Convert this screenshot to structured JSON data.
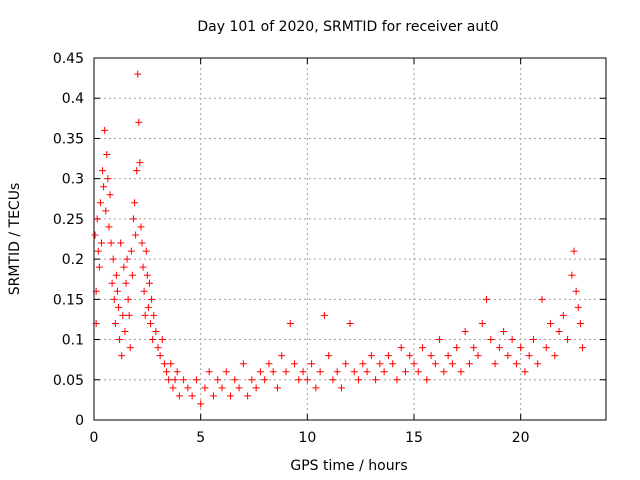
{
  "chart_data": {
    "type": "scatter",
    "title": "Day 101 of 2020, SRMTID for receiver aut0",
    "xlabel": "GPS time / hours",
    "ylabel": "SRMTID / TECUs",
    "xlim": [
      0,
      24
    ],
    "ylim": [
      0,
      0.45
    ],
    "xticks": [
      0,
      5,
      10,
      15,
      20
    ],
    "xtick_labels": [
      "0",
      "5",
      "10",
      "15",
      "20"
    ],
    "yticks": [
      0,
      0.05,
      0.1,
      0.15,
      0.2,
      0.25,
      0.3,
      0.35,
      0.4,
      0.45
    ],
    "ytick_labels": [
      "0",
      "0.05",
      "0.1",
      "0.15",
      "0.2",
      "0.25",
      "0.3",
      "0.35",
      "0.4",
      "0.45"
    ],
    "grid": true,
    "marker": "+",
    "series": [
      {
        "name": "aut0",
        "color": "#ff0000",
        "points": [
          [
            0.05,
            0.23
          ],
          [
            0.1,
            0.12
          ],
          [
            0.1,
            0.16
          ],
          [
            0.15,
            0.25
          ],
          [
            0.2,
            0.21
          ],
          [
            0.25,
            0.19
          ],
          [
            0.3,
            0.27
          ],
          [
            0.35,
            0.22
          ],
          [
            0.4,
            0.31
          ],
          [
            0.45,
            0.29
          ],
          [
            0.5,
            0.36
          ],
          [
            0.55,
            0.26
          ],
          [
            0.6,
            0.33
          ],
          [
            0.65,
            0.3
          ],
          [
            0.7,
            0.24
          ],
          [
            0.75,
            0.28
          ],
          [
            0.8,
            0.22
          ],
          [
            0.85,
            0.17
          ],
          [
            0.9,
            0.2
          ],
          [
            0.95,
            0.15
          ],
          [
            1.0,
            0.12
          ],
          [
            1.05,
            0.18
          ],
          [
            1.1,
            0.16
          ],
          [
            1.15,
            0.14
          ],
          [
            1.2,
            0.1
          ],
          [
            1.25,
            0.22
          ],
          [
            1.3,
            0.08
          ],
          [
            1.35,
            0.13
          ],
          [
            1.4,
            0.19
          ],
          [
            1.45,
            0.11
          ],
          [
            1.5,
            0.17
          ],
          [
            1.55,
            0.2
          ],
          [
            1.6,
            0.15
          ],
          [
            1.65,
            0.13
          ],
          [
            1.7,
            0.09
          ],
          [
            1.75,
            0.21
          ],
          [
            1.8,
            0.18
          ],
          [
            1.85,
            0.25
          ],
          [
            1.9,
            0.27
          ],
          [
            1.95,
            0.23
          ],
          [
            2.0,
            0.31
          ],
          [
            2.05,
            0.43
          ],
          [
            2.1,
            0.37
          ],
          [
            2.15,
            0.32
          ],
          [
            2.2,
            0.24
          ],
          [
            2.25,
            0.22
          ],
          [
            2.3,
            0.19
          ],
          [
            2.35,
            0.16
          ],
          [
            2.4,
            0.13
          ],
          [
            2.45,
            0.21
          ],
          [
            2.5,
            0.18
          ],
          [
            2.55,
            0.14
          ],
          [
            2.6,
            0.17
          ],
          [
            2.65,
            0.12
          ],
          [
            2.7,
            0.15
          ],
          [
            2.75,
            0.1
          ],
          [
            2.8,
            0.13
          ],
          [
            2.9,
            0.11
          ],
          [
            3.0,
            0.09
          ],
          [
            3.1,
            0.08
          ],
          [
            3.2,
            0.1
          ],
          [
            3.3,
            0.07
          ],
          [
            3.4,
            0.06
          ],
          [
            3.5,
            0.05
          ],
          [
            3.6,
            0.07
          ],
          [
            3.7,
            0.04
          ],
          [
            3.8,
            0.05
          ],
          [
            3.9,
            0.06
          ],
          [
            4.0,
            0.03
          ],
          [
            4.2,
            0.05
          ],
          [
            4.4,
            0.04
          ],
          [
            4.6,
            0.03
          ],
          [
            4.8,
            0.05
          ],
          [
            5.0,
            0.02
          ],
          [
            5.2,
            0.04
          ],
          [
            5.4,
            0.06
          ],
          [
            5.6,
            0.03
          ],
          [
            5.8,
            0.05
          ],
          [
            6.0,
            0.04
          ],
          [
            6.2,
            0.06
          ],
          [
            6.4,
            0.03
          ],
          [
            6.6,
            0.05
          ],
          [
            6.8,
            0.04
          ],
          [
            7.0,
            0.07
          ],
          [
            7.2,
            0.03
          ],
          [
            7.4,
            0.05
          ],
          [
            7.6,
            0.04
          ],
          [
            7.8,
            0.06
          ],
          [
            8.0,
            0.05
          ],
          [
            8.2,
            0.07
          ],
          [
            8.4,
            0.06
          ],
          [
            8.6,
            0.04
          ],
          [
            8.8,
            0.08
          ],
          [
            9.0,
            0.06
          ],
          [
            9.2,
            0.12
          ],
          [
            9.4,
            0.07
          ],
          [
            9.6,
            0.05
          ],
          [
            9.8,
            0.06
          ],
          [
            10.0,
            0.05
          ],
          [
            10.2,
            0.07
          ],
          [
            10.4,
            0.04
          ],
          [
            10.6,
            0.06
          ],
          [
            10.8,
            0.13
          ],
          [
            11.0,
            0.08
          ],
          [
            11.2,
            0.05
          ],
          [
            11.4,
            0.06
          ],
          [
            11.6,
            0.04
          ],
          [
            11.8,
            0.07
          ],
          [
            12.0,
            0.12
          ],
          [
            12.2,
            0.06
          ],
          [
            12.4,
            0.05
          ],
          [
            12.6,
            0.07
          ],
          [
            12.8,
            0.06
          ],
          [
            13.0,
            0.08
          ],
          [
            13.2,
            0.05
          ],
          [
            13.4,
            0.07
          ],
          [
            13.6,
            0.06
          ],
          [
            13.8,
            0.08
          ],
          [
            14.0,
            0.07
          ],
          [
            14.2,
            0.05
          ],
          [
            14.4,
            0.09
          ],
          [
            14.6,
            0.06
          ],
          [
            14.8,
            0.08
          ],
          [
            15.0,
            0.07
          ],
          [
            15.2,
            0.06
          ],
          [
            15.4,
            0.09
          ],
          [
            15.6,
            0.05
          ],
          [
            15.8,
            0.08
          ],
          [
            16.0,
            0.07
          ],
          [
            16.2,
            0.1
          ],
          [
            16.4,
            0.06
          ],
          [
            16.6,
            0.08
          ],
          [
            16.8,
            0.07
          ],
          [
            17.0,
            0.09
          ],
          [
            17.2,
            0.06
          ],
          [
            17.4,
            0.11
          ],
          [
            17.6,
            0.07
          ],
          [
            17.8,
            0.09
          ],
          [
            18.0,
            0.08
          ],
          [
            18.2,
            0.12
          ],
          [
            18.4,
            0.15
          ],
          [
            18.6,
            0.1
          ],
          [
            18.8,
            0.07
          ],
          [
            19.0,
            0.09
          ],
          [
            19.2,
            0.11
          ],
          [
            19.4,
            0.08
          ],
          [
            19.6,
            0.1
          ],
          [
            19.8,
            0.07
          ],
          [
            20.0,
            0.09
          ],
          [
            20.2,
            0.06
          ],
          [
            20.4,
            0.08
          ],
          [
            20.6,
            0.1
          ],
          [
            20.8,
            0.07
          ],
          [
            21.0,
            0.15
          ],
          [
            21.2,
            0.09
          ],
          [
            21.4,
            0.12
          ],
          [
            21.6,
            0.08
          ],
          [
            21.8,
            0.11
          ],
          [
            22.0,
            0.13
          ],
          [
            22.2,
            0.1
          ],
          [
            22.4,
            0.18
          ],
          [
            22.5,
            0.21
          ],
          [
            22.6,
            0.16
          ],
          [
            22.7,
            0.14
          ],
          [
            22.8,
            0.12
          ],
          [
            22.9,
            0.09
          ]
        ]
      }
    ]
  }
}
